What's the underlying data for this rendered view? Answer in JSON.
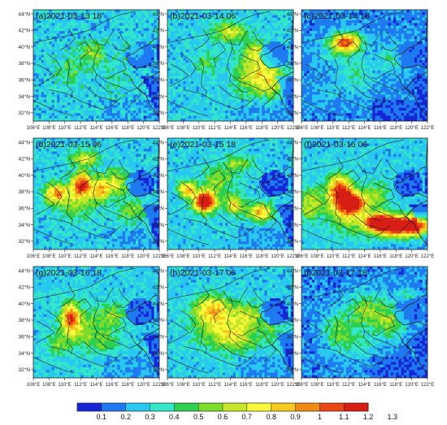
{
  "palette": [
    "#1426d6",
    "#1f7af0",
    "#29c8f0",
    "#32e6c8",
    "#2fcf50",
    "#7edc2a",
    "#c8e628",
    "#fafa3c",
    "#f5c81e",
    "#f08c14",
    "#eb4614",
    "#d71e14"
  ],
  "ocean_color": "#1426d6",
  "latitude_labels": [
    "44°N",
    "42°N",
    "40°N",
    "38°N",
    "36°N",
    "34°N",
    "32°N"
  ],
  "longitude_labels": [
    "106°E",
    "108°E",
    "110°E",
    "112°E",
    "114°E",
    "116°E",
    "118°E",
    "120°E",
    "122°E"
  ],
  "panels": [
    {
      "id": "a",
      "title": "(a)2021-03-13 18",
      "base": 2,
      "noise": 2.3,
      "blobs": [
        [
          113.5,
          39.2,
          1.6,
          1.4,
          3
        ],
        [
          110.5,
          37.2,
          1.6,
          1.8,
          2
        ],
        [
          119,
          39.5,
          1.5,
          1.2,
          2
        ],
        [
          116.5,
          36,
          2,
          2,
          1
        ]
      ]
    },
    {
      "id": "b",
      "title": "(b)2021-03-14 06",
      "base": 2,
      "noise": 1.8,
      "blobs": [
        [
          117.5,
          36.8,
          2.6,
          2.6,
          5
        ],
        [
          114,
          41.8,
          2.2,
          1.2,
          4
        ],
        [
          119.5,
          35.5,
          1.6,
          1.8,
          2
        ],
        [
          117,
          39.5,
          1.2,
          1,
          3
        ],
        [
          111,
          38,
          1.4,
          1.4,
          2
        ]
      ]
    },
    {
      "id": "c",
      "title": "(c)2021-03-14 18",
      "base": 1,
      "noise": 1.6,
      "blobs": [
        [
          111.8,
          40.6,
          1.9,
          1.1,
          8
        ],
        [
          110.5,
          39.5,
          2.4,
          1.8,
          2
        ],
        [
          113,
          36.5,
          2.2,
          2.4,
          2
        ],
        [
          117.5,
          38.5,
          2,
          2,
          2
        ],
        [
          109,
          34.5,
          1.8,
          1.6,
          1
        ]
      ]
    },
    {
      "id": "d",
      "title": "(d)2021-03-15 06",
      "base": 2,
      "noise": 2,
      "blobs": [
        [
          112.2,
          38.9,
          1.3,
          1.4,
          8
        ],
        [
          108.8,
          37.8,
          1.4,
          1.2,
          6
        ],
        [
          111.5,
          36.8,
          2.5,
          2,
          3
        ],
        [
          114.6,
          38.2,
          1.2,
          1.3,
          5
        ],
        [
          116.6,
          39.2,
          1.8,
          1.5,
          4
        ],
        [
          112.5,
          42,
          2,
          1,
          4
        ],
        [
          118.5,
          35.8,
          1.8,
          1.5,
          3
        ]
      ]
    },
    {
      "id": "e",
      "title": "(e)2021-03-15 18",
      "base": 2,
      "noise": 1.8,
      "blobs": [
        [
          110.8,
          36.8,
          1.4,
          1.3,
          11
        ],
        [
          108.5,
          38.3,
          1.1,
          1,
          6
        ],
        [
          114.5,
          36.5,
          1.2,
          1.2,
          5
        ],
        [
          117.8,
          35.5,
          1.6,
          1.1,
          6
        ],
        [
          112.5,
          39.5,
          2,
          1.5,
          3
        ],
        [
          115,
          41.5,
          1.8,
          1,
          3
        ]
      ]
    },
    {
      "id": "f",
      "title": "(f)2021-03-16 06",
      "base": 2,
      "noise": 1.6,
      "blobs": [
        [
          110.8,
          38.2,
          1.5,
          1.8,
          7
        ],
        [
          112.6,
          36.5,
          1.6,
          1.3,
          8
        ],
        [
          118.2,
          33.8,
          3.6,
          1.3,
          11
        ],
        [
          115.8,
          34.4,
          1.6,
          0.9,
          8
        ],
        [
          121.3,
          33.9,
          1.4,
          0.9,
          8
        ],
        [
          111.5,
          36,
          2.3,
          2.6,
          4
        ],
        [
          115.5,
          37.5,
          1.6,
          1.6,
          3
        ],
        [
          107,
          36.5,
          1.5,
          2,
          4
        ]
      ]
    },
    {
      "id": "g",
      "title": "(g)2021-03-16 18",
      "base": 2,
      "noise": 1.7,
      "blobs": [
        [
          110.7,
          38.3,
          1.1,
          1.8,
          6
        ],
        [
          111.8,
          37.2,
          2.5,
          2.6,
          3
        ],
        [
          116,
          38.5,
          1.8,
          1.5,
          3
        ],
        [
          115,
          35.5,
          2,
          1.6,
          2
        ],
        [
          109,
          35,
          1.5,
          1.5,
          2
        ]
      ]
    },
    {
      "id": "h",
      "title": "(h)2021-03-17 06",
      "base": 2,
      "noise": 1.8,
      "blobs": [
        [
          112.5,
          37.5,
          3.2,
          2.6,
          4
        ],
        [
          111.5,
          39.5,
          2.2,
          1.5,
          4
        ],
        [
          116.5,
          38.5,
          2,
          1.5,
          3
        ],
        [
          115,
          35.8,
          2.5,
          1.6,
          3
        ],
        [
          119.5,
          36.5,
          1.5,
          1.4,
          2
        ]
      ]
    },
    {
      "id": "i",
      "title": "(i)2021-03-17 18",
      "base": 1,
      "noise": 1.8,
      "blobs": [
        [
          114.5,
          39,
          3,
          2.2,
          4
        ],
        [
          110.5,
          36.8,
          1.8,
          2,
          3
        ],
        [
          117.5,
          37.5,
          2,
          1.8,
          3
        ],
        [
          113,
          35,
          2.5,
          1.6,
          2
        ],
        [
          119.5,
          41,
          1.2,
          1,
          2
        ]
      ]
    }
  ],
  "colorbar": {
    "labels": [
      "0.1",
      "0.2",
      "0.3",
      "0.4",
      "0.5",
      "0.6",
      "0.7",
      "0.8",
      "0.9",
      "1",
      "1.1",
      "1.2",
      "1.3"
    ]
  }
}
